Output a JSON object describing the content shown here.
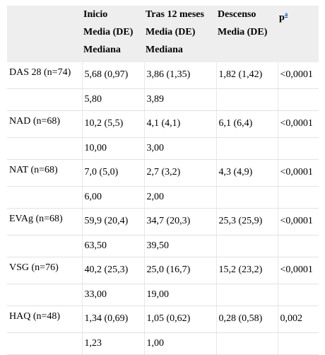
{
  "header": {
    "col0": "",
    "col1": [
      "Inicio",
      "Media (DE)",
      "Mediana"
    ],
    "col2": [
      "Tras 12 meses",
      "Media (DE)",
      "Mediana"
    ],
    "col3": [
      "Descenso",
      "Media (DE)"
    ],
    "col4": "p",
    "col4_sup": "a"
  },
  "rows": [
    {
      "label": "DAS 28 (n=74)",
      "inicio_mean": "5,68 (0,97)",
      "tras_mean": "3,86 (1,35)",
      "descenso": "1,82 (1,42)",
      "p": "<0,0001",
      "inicio_median": "5,80",
      "tras_median": "3,89"
    },
    {
      "label": "NAD (n=68)",
      "inicio_mean": "10,2 (5,5)",
      "tras_mean": "4,1 (4,1)",
      "descenso": "6,1 (6,4)",
      "p": "<0,0001",
      "inicio_median": "10,00",
      "tras_median": "3,00"
    },
    {
      "label": "NAT (n=68)",
      "inicio_mean": "7,0 (5,0)",
      "tras_mean": "2,7 (3,2)",
      "descenso": "4,3 (4,9)",
      "p": "<0,0001",
      "inicio_median": "6,00",
      "tras_median": "2,00"
    },
    {
      "label": "EVAg (n=68)",
      "inicio_mean": "59,9 (20,4)",
      "tras_mean": "34,7 (20,3)",
      "descenso": "25,3 (25,9)",
      "p": "<0,0001",
      "inicio_median": "63,50",
      "tras_median": "39,50"
    },
    {
      "label": "VSG (n=76)",
      "inicio_mean": "40,2 (25,3)",
      "tras_mean": "25,0 (16,7)",
      "descenso": "15,2 (23,2)",
      "p": "<0,0001",
      "inicio_median": "33,00",
      "tras_median": "19,00"
    },
    {
      "label": "HAQ (n=48)",
      "inicio_mean": "1,34 (0,69)",
      "tras_mean": "1,05 (0,62)",
      "descenso": "0,28 (0,58)",
      "p": "0,002",
      "inicio_median": "1,23",
      "tras_median": "1,00"
    }
  ]
}
